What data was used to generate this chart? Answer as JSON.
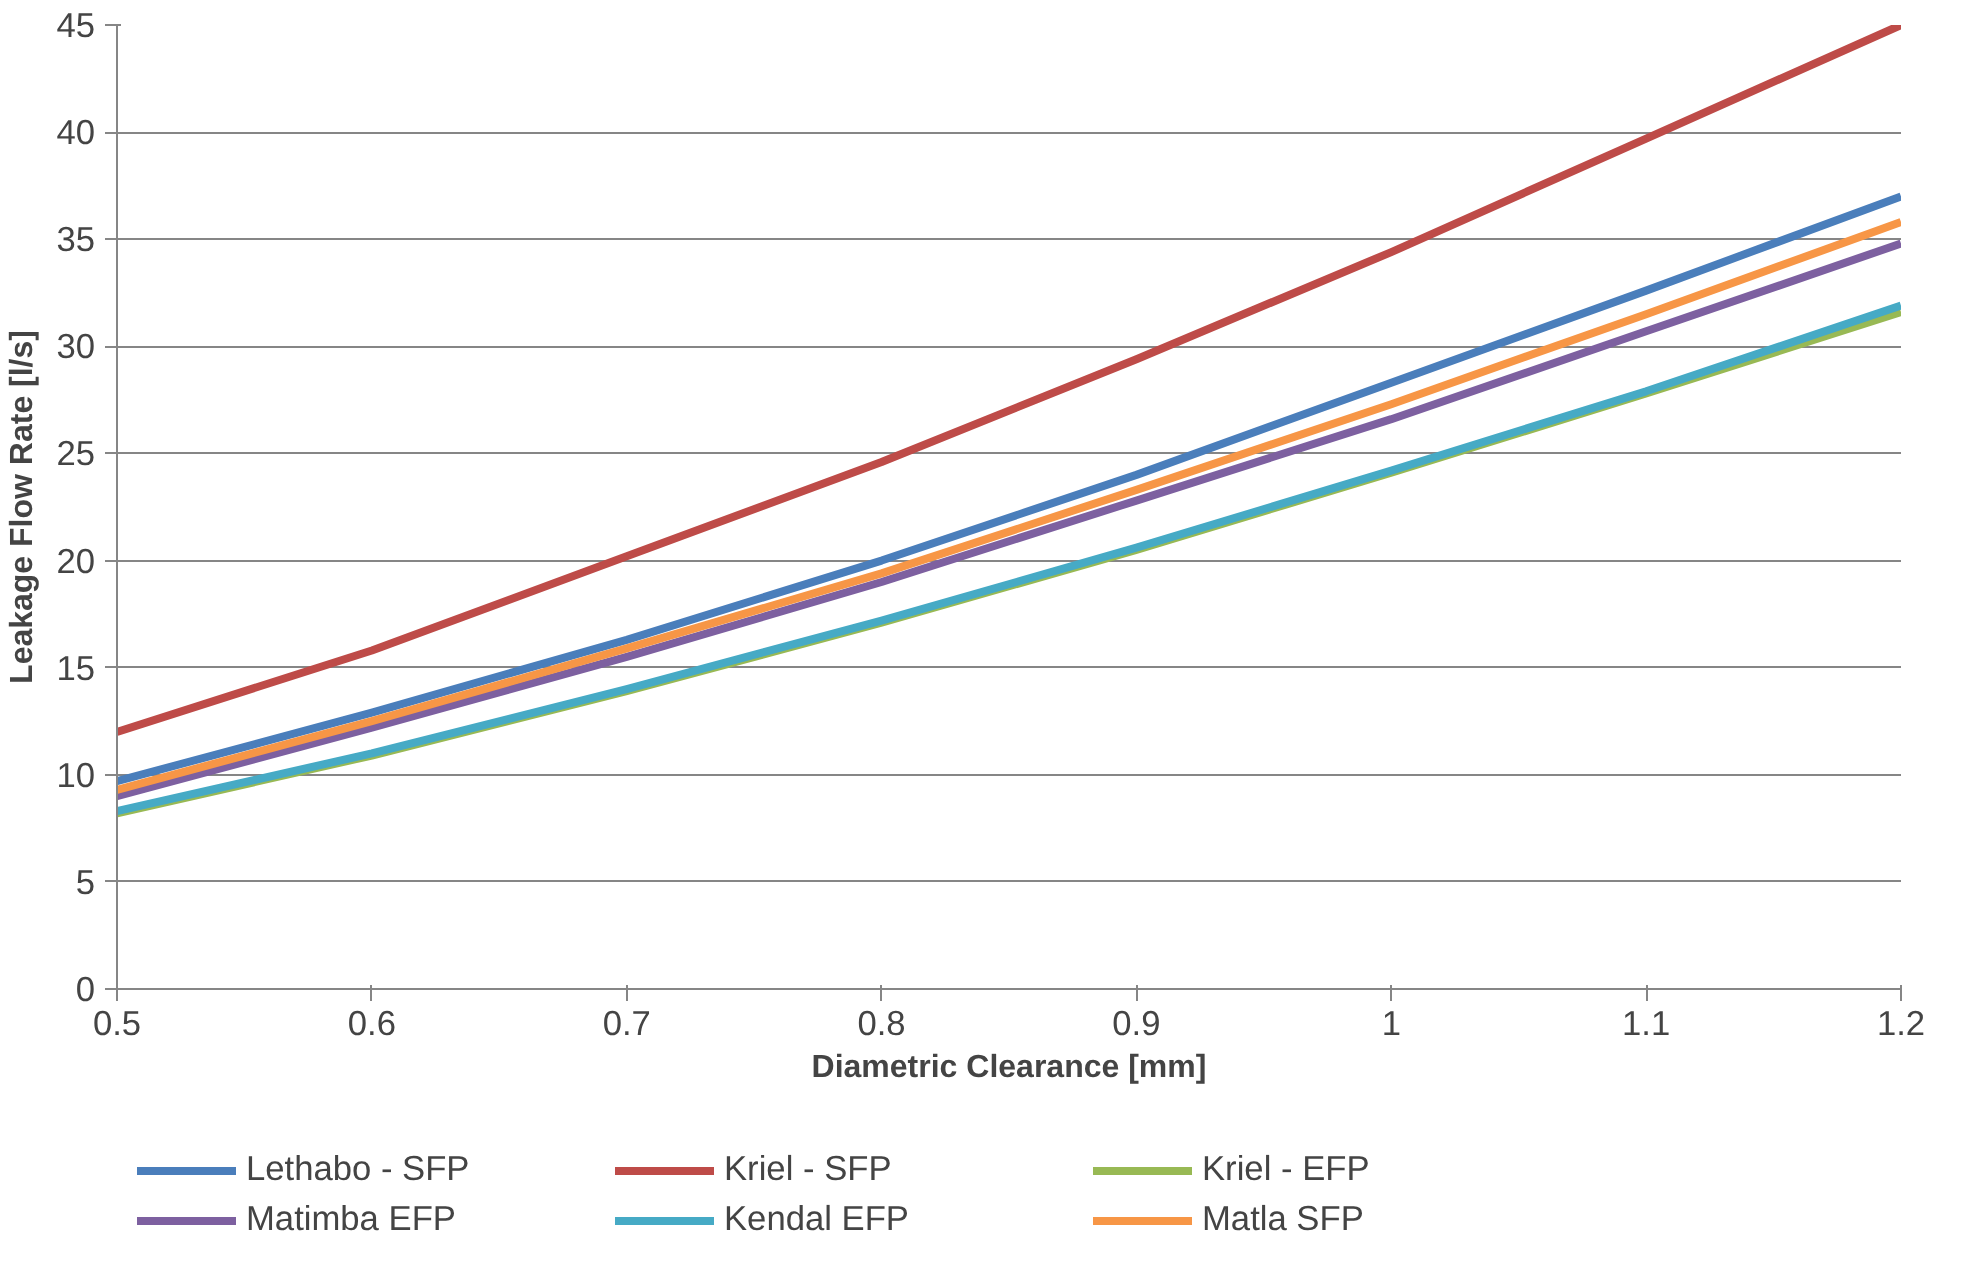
{
  "chart_data": {
    "type": "line",
    "xlabel": "Diametric Clearance [mm]",
    "ylabel": "Leakage Flow Rate [l/s]",
    "x": [
      0.5,
      0.6,
      0.7,
      0.8,
      0.9,
      1.0,
      1.1,
      1.2
    ],
    "xlim": [
      0.5,
      1.2
    ],
    "xticks": [
      0.5,
      0.6,
      0.7,
      0.8,
      0.9,
      1,
      1.1,
      1.2
    ],
    "ylim": [
      0,
      45
    ],
    "yticks": [
      0,
      5,
      10,
      15,
      20,
      25,
      30,
      35,
      40,
      45
    ],
    "grid": "y",
    "legend": "bottom",
    "marker": "none",
    "line_style": "solid",
    "series": [
      {
        "name": "Lethabo - SFP",
        "color": "#4a7ebb",
        "values": [
          9.7,
          12.9,
          16.3,
          20.0,
          24.0,
          28.3,
          32.6,
          37.0
        ]
      },
      {
        "name": "Kriel - SFP",
        "color": "#be4b48",
        "values": [
          12.0,
          15.8,
          20.2,
          24.6,
          29.4,
          34.4,
          39.7,
          45.0
        ]
      },
      {
        "name": "Kriel - EFP",
        "color": "#98b954",
        "values": [
          8.2,
          10.9,
          13.9,
          17.1,
          20.5,
          24.1,
          27.8,
          31.6
        ]
      },
      {
        "name": "Matimba EFP",
        "color": "#7d60a0",
        "values": [
          9.0,
          12.2,
          15.5,
          19.0,
          22.8,
          26.6,
          30.7,
          34.8
        ]
      },
      {
        "name": "Kendal EFP",
        "color": "#46aac5",
        "values": [
          8.3,
          11.0,
          14.0,
          17.2,
          20.6,
          24.2,
          27.9,
          31.9
        ]
      },
      {
        "name": "Matla SFP",
        "color": "#f79646",
        "values": [
          9.3,
          12.5,
          15.9,
          19.4,
          23.3,
          27.3,
          31.5,
          35.8
        ]
      }
    ]
  }
}
